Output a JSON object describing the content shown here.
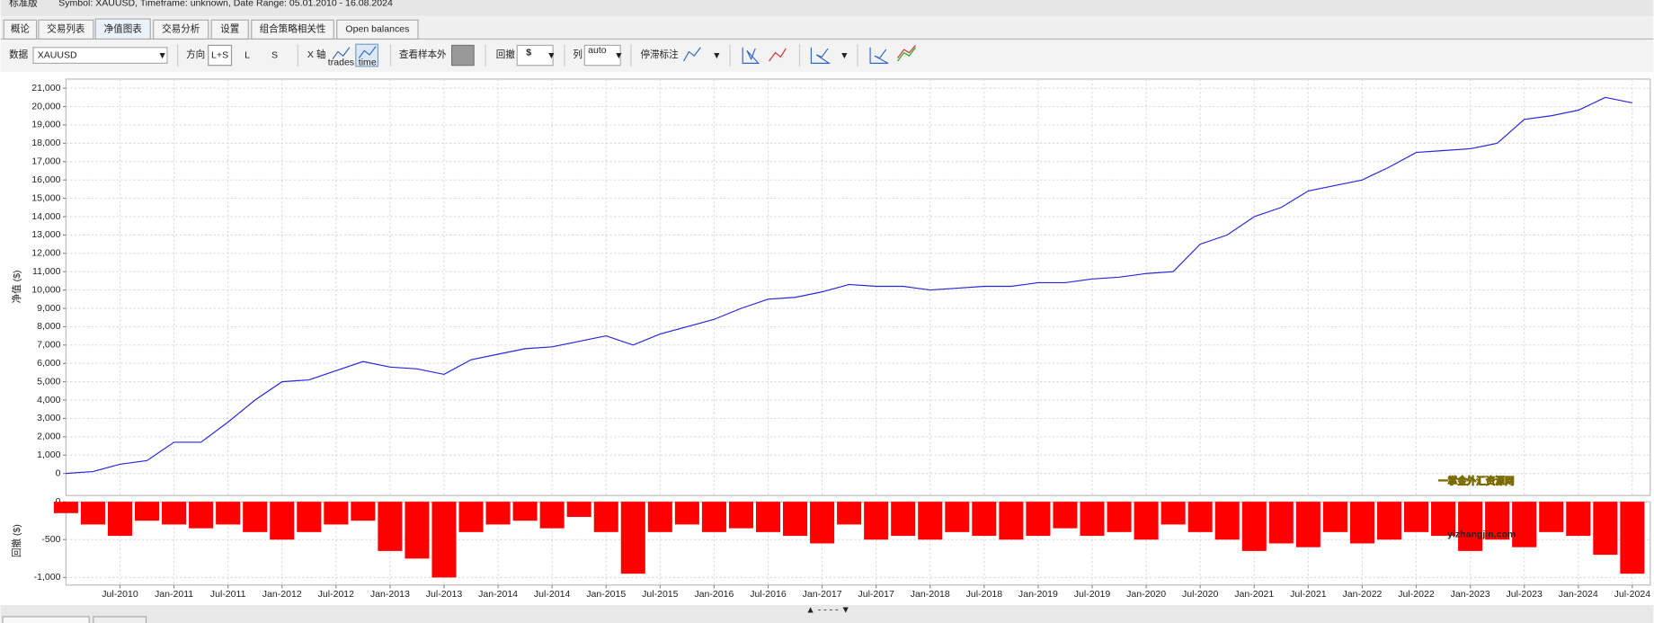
{
  "header": {
    "title": "标准版",
    "info": "Symbol: XAUUSD, Timeframe: unknown, Date Range: 05.01.2010 - 16.08.2024"
  },
  "tabs": [
    "概论",
    "交易列表",
    "净值图表",
    "交易分析",
    "设置",
    "组合策略相关性",
    "Open balances"
  ],
  "active_tab": 2,
  "toolbar": {
    "data_label": "数据",
    "symbol": "XAUUSD",
    "direction_label": "方向",
    "directions": [
      "L+S",
      "L",
      "S"
    ],
    "xaxis_label": "X 轴",
    "xaxis_options": [
      "trades",
      "time"
    ],
    "oos_label": "查看样本外",
    "drawdown_label": "回撤",
    "drawdown_unit": "$",
    "columns_label": "列",
    "columns_option": "auto",
    "stagnation_label": "停滞标注"
  },
  "watermark": {
    "title": "一掌金外汇资源网",
    "url": "yizhangjin.com"
  },
  "splitter": "▲ - - - - ▼",
  "chart_data": [
    {
      "type": "line",
      "ylabel": "净值 ($)",
      "color": "#2626dc",
      "grid": true,
      "x": [
        "Jan-2010",
        "Apr-2010",
        "Jul-2010",
        "Oct-2010",
        "Jan-2011",
        "Apr-2011",
        "Jul-2011",
        "Oct-2011",
        "Jan-2012",
        "Apr-2012",
        "Jul-2012",
        "Oct-2012",
        "Jan-2013",
        "Apr-2013",
        "Jul-2013",
        "Oct-2013",
        "Jan-2014",
        "Apr-2014",
        "Jul-2014",
        "Oct-2014",
        "Jan-2015",
        "Apr-2015",
        "Jul-2015",
        "Oct-2015",
        "Jan-2016",
        "Apr-2016",
        "Jul-2016",
        "Oct-2016",
        "Jan-2017",
        "Apr-2017",
        "Jul-2017",
        "Oct-2017",
        "Jan-2018",
        "Apr-2018",
        "Jul-2018",
        "Oct-2018",
        "Jan-2019",
        "Apr-2019",
        "Jul-2019",
        "Oct-2019",
        "Jan-2020",
        "Apr-2020",
        "Jul-2020",
        "Oct-2020",
        "Jan-2021",
        "Apr-2021",
        "Jul-2021",
        "Oct-2021",
        "Jan-2022",
        "Apr-2022",
        "Jul-2022",
        "Oct-2022",
        "Jan-2023",
        "Apr-2023",
        "Jul-2023",
        "Oct-2023",
        "Jan-2024",
        "Apr-2024",
        "Jul-2024"
      ],
      "values": [
        0,
        100,
        500,
        700,
        1700,
        1700,
        2800,
        4000,
        5000,
        5100,
        5600,
        6100,
        5800,
        5700,
        5400,
        6200,
        6500,
        6800,
        6900,
        7200,
        7500,
        7000,
        7600,
        8000,
        8400,
        9000,
        9500,
        9600,
        9900,
        10300,
        10200,
        10200,
        10000,
        10100,
        10200,
        10200,
        10400,
        10400,
        10600,
        10700,
        10900,
        11000,
        12500,
        13000,
        14000,
        14500,
        15400,
        15700,
        16000,
        16700,
        17500,
        17600,
        17700,
        18000,
        19300,
        19500,
        19800,
        20500,
        20200
      ],
      "ylim": [
        -1200,
        21500
      ],
      "yticks": [
        0,
        {
          "value": 1000,
          "label": "1,000"
        },
        {
          "value": 2000,
          "label": "2,000"
        },
        {
          "value": 3000,
          "label": "3,000"
        },
        {
          "value": 4000,
          "label": "4,000"
        },
        {
          "value": 5000,
          "label": "5,000"
        },
        {
          "value": 6000,
          "label": "6,000"
        },
        {
          "value": 7000,
          "label": "7,000"
        },
        {
          "value": 8000,
          "label": "8,000"
        },
        {
          "value": 9000,
          "label": "9,000"
        },
        {
          "value": 10000,
          "label": "10,000"
        },
        {
          "value": 11000,
          "label": "11,000"
        },
        {
          "value": 12000,
          "label": "12,000"
        },
        {
          "value": 13000,
          "label": "13,000"
        },
        {
          "value": 14000,
          "label": "14,000"
        },
        {
          "value": 15000,
          "label": "15,000"
        },
        {
          "value": 16000,
          "label": "16,000"
        },
        {
          "value": 17000,
          "label": "17,000"
        },
        {
          "value": 18000,
          "label": "18,000"
        },
        {
          "value": 19000,
          "label": "19,000"
        },
        {
          "value": 20000,
          "label": "20,000"
        },
        {
          "value": 21000,
          "label": "21,000"
        }
      ],
      "xticks": [
        "Jul-2010",
        "Jan-2011",
        "Jul-2011",
        "Jan-2012",
        "Jul-2012",
        "Jan-2013",
        "Jul-2013",
        "Jan-2014",
        "Jul-2014",
        "Jan-2015",
        "Jul-2015",
        "Jan-2016",
        "Jul-2016",
        "Jan-2017",
        "Jul-2017",
        "Jan-2018",
        "Jul-2018",
        "Jan-2019",
        "Jul-2019",
        "Jan-2020",
        "Jul-2020",
        "Jan-2021",
        "Jul-2021",
        "Jan-2022",
        "Jul-2022",
        "Jan-2023",
        "Jul-2023",
        "Jan-2024",
        "Jul-2024"
      ]
    },
    {
      "type": "bar",
      "ylabel": "回撤 ($)",
      "color": "#ff0000",
      "grid": true,
      "x": [
        "Jan-2010",
        "Apr-2010",
        "Jul-2010",
        "Oct-2010",
        "Jan-2011",
        "Apr-2011",
        "Jul-2011",
        "Oct-2011",
        "Jan-2012",
        "Apr-2012",
        "Jul-2012",
        "Oct-2012",
        "Jan-2013",
        "Apr-2013",
        "Jul-2013",
        "Oct-2013",
        "Jan-2014",
        "Apr-2014",
        "Jul-2014",
        "Oct-2014",
        "Jan-2015",
        "Apr-2015",
        "Jul-2015",
        "Oct-2015",
        "Jan-2016",
        "Apr-2016",
        "Jul-2016",
        "Oct-2016",
        "Jan-2017",
        "Apr-2017",
        "Jul-2017",
        "Oct-2017",
        "Jan-2018",
        "Apr-2018",
        "Jul-2018",
        "Oct-2018",
        "Jan-2019",
        "Apr-2019",
        "Jul-2019",
        "Oct-2019",
        "Jan-2020",
        "Apr-2020",
        "Jul-2020",
        "Oct-2020",
        "Jan-2021",
        "Apr-2021",
        "Jul-2021",
        "Oct-2021",
        "Jan-2022",
        "Apr-2022",
        "Jul-2022",
        "Oct-2022",
        "Jan-2023",
        "Apr-2023",
        "Jul-2023",
        "Oct-2023",
        "Jan-2024",
        "Apr-2024",
        "Jul-2024"
      ],
      "values": [
        -150,
        -300,
        -450,
        -250,
        -300,
        -350,
        -300,
        -400,
        -500,
        -400,
        -300,
        -250,
        -650,
        -750,
        -1000,
        -400,
        -300,
        -250,
        -350,
        -200,
        -400,
        -950,
        -400,
        -300,
        -400,
        -350,
        -400,
        -450,
        -550,
        -300,
        -500,
        -450,
        -500,
        -400,
        -450,
        -500,
        -450,
        -350,
        -450,
        -400,
        -500,
        -300,
        -400,
        -500,
        -650,
        -550,
        -600,
        -400,
        -550,
        -500,
        -400,
        -450,
        -650,
        -500,
        -600,
        -400,
        -450,
        -700,
        -950
      ],
      "ylim": [
        -1100,
        0
      ],
      "yticks": [
        0,
        -500,
        {
          "value": -1000,
          "label": "-1,000"
        }
      ]
    }
  ]
}
